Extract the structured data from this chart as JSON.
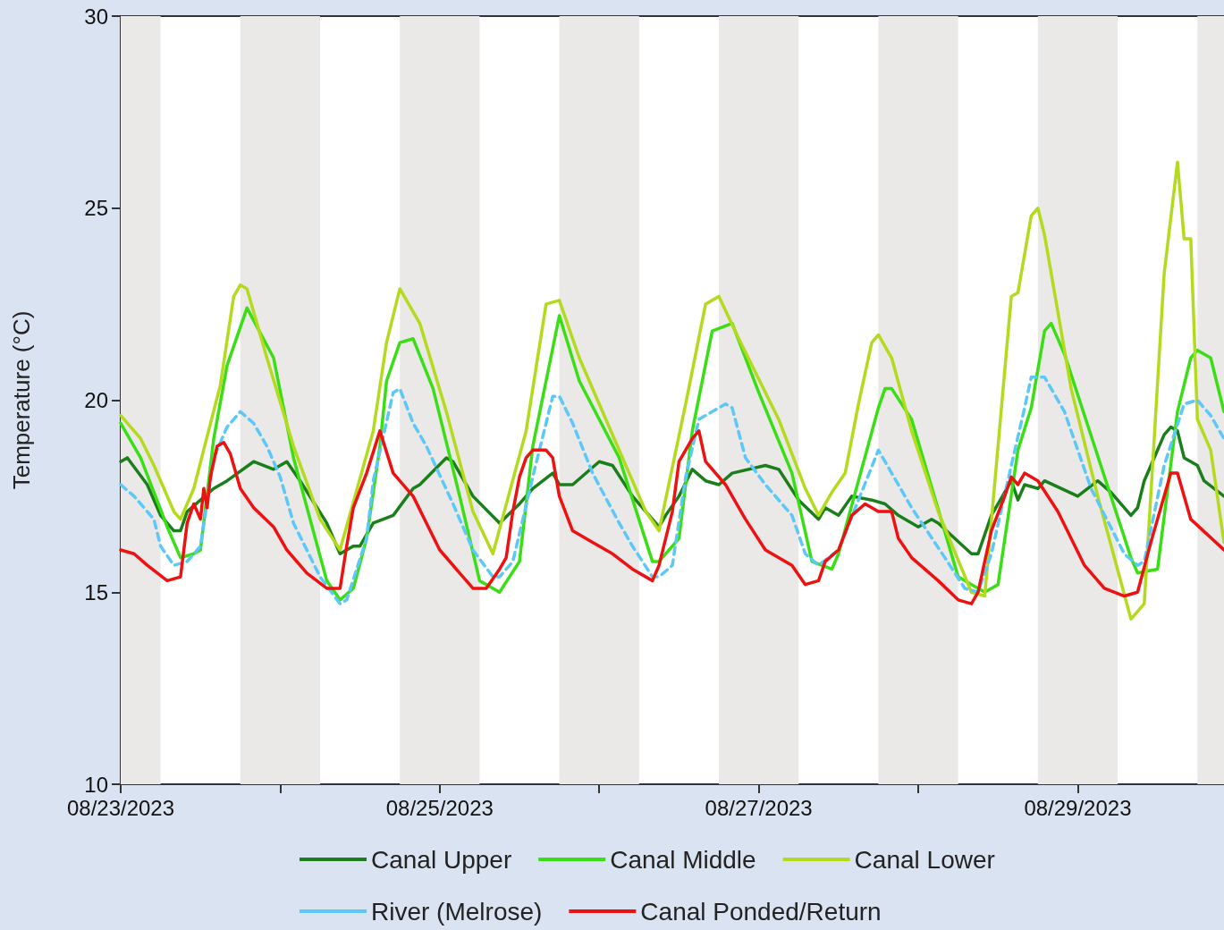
{
  "chart_data": {
    "type": "line",
    "ylabel": "Temperature (°C)",
    "ylim": [
      10,
      30
    ],
    "yticks": [
      10,
      15,
      20,
      25,
      30
    ],
    "xlim": [
      "2023-08-23T00:00",
      "2023-08-29T22:00"
    ],
    "xticks": [
      {
        "value": "2023-08-23",
        "label": "08/23/2023"
      },
      {
        "value": "2023-08-24",
        "label": null
      },
      {
        "value": "2023-08-25",
        "label": "08/25/2023"
      },
      {
        "value": "2023-08-26",
        "label": null
      },
      {
        "value": "2023-08-27",
        "label": "08/27/2023"
      },
      {
        "value": "2023-08-28",
        "label": null
      },
      {
        "value": "2023-08-29",
        "label": "08/29/2023"
      }
    ],
    "grid": false,
    "legend": "bottom",
    "marker": "none",
    "bands": [
      {
        "axis": "x",
        "from": "2023-08-23T00:00",
        "to": "2023-08-23T06:00",
        "color": "#ebe8e8"
      },
      {
        "axis": "x",
        "from": "2023-08-23T18:00",
        "to": "2023-08-24T06:00",
        "color": "#ebe8e8"
      },
      {
        "axis": "x",
        "from": "2023-08-24T18:00",
        "to": "2023-08-25T06:00",
        "color": "#ebe8e8"
      },
      {
        "axis": "x",
        "from": "2023-08-25T18:00",
        "to": "2023-08-26T06:00",
        "color": "#ebe8e8"
      },
      {
        "axis": "x",
        "from": "2023-08-26T18:00",
        "to": "2023-08-27T06:00",
        "color": "#ebe8e8"
      },
      {
        "axis": "x",
        "from": "2023-08-27T18:00",
        "to": "2023-08-28T06:00",
        "color": "#ebe8e8"
      },
      {
        "axis": "x",
        "from": "2023-08-28T18:00",
        "to": "2023-08-29T06:00",
        "color": "#ebe8e8"
      },
      {
        "axis": "x",
        "from": "2023-08-29T18:00",
        "to": "2023-08-29T22:00",
        "color": "#ebe8e8"
      }
    ],
    "series": [
      {
        "name": "Canal Upper",
        "color": "#1a7f1a",
        "line_style": "solid",
        "x": [
          "2023-08-23T00:00",
          "2023-08-23T01:00",
          "2023-08-23T04:00",
          "2023-08-23T06:00",
          "2023-08-23T08:00",
          "2023-08-23T09:00",
          "2023-08-23T10:00",
          "2023-08-23T14:00",
          "2023-08-23T16:00",
          "2023-08-23T20:00",
          "2023-08-23T23:00",
          "2023-08-24T01:00",
          "2023-08-24T03:00",
          "2023-08-24T07:00",
          "2023-08-24T09:00",
          "2023-08-24T11:00",
          "2023-08-24T12:00",
          "2023-08-24T14:00",
          "2023-08-24T17:00",
          "2023-08-24T20:00",
          "2023-08-24T21:00",
          "2023-08-25T01:00",
          "2023-08-25T02:00",
          "2023-08-25T05:00",
          "2023-08-25T09:00",
          "2023-08-25T12:00",
          "2023-08-25T14:00",
          "2023-08-25T17:00",
          "2023-08-25T18:00",
          "2023-08-25T20:00",
          "2023-08-26T00:00",
          "2023-08-26T02:00",
          "2023-08-26T05:00",
          "2023-08-26T09:00",
          "2023-08-26T10:00",
          "2023-08-26T12:00",
          "2023-08-26T14:00",
          "2023-08-26T16:00",
          "2023-08-26T18:00",
          "2023-08-26T20:00",
          "2023-08-27T01:00",
          "2023-08-27T03:00",
          "2023-08-27T06:00",
          "2023-08-27T09:00",
          "2023-08-27T10:00",
          "2023-08-27T12:00",
          "2023-08-27T14:00",
          "2023-08-27T17:00",
          "2023-08-27T19:00",
          "2023-08-27T21:00",
          "2023-08-28T00:00",
          "2023-08-28T02:00",
          "2023-08-28T03:00",
          "2023-08-28T08:00",
          "2023-08-28T09:00",
          "2023-08-28T11:00",
          "2023-08-28T14:00",
          "2023-08-28T15:00",
          "2023-08-28T16:00",
          "2023-08-28T18:00",
          "2023-08-28T19:00",
          "2023-08-29T00:00",
          "2023-08-29T03:00",
          "2023-08-29T05:00",
          "2023-08-29T08:00",
          "2023-08-29T09:00",
          "2023-08-29T10:00",
          "2023-08-29T13:00",
          "2023-08-29T14:00",
          "2023-08-29T15:00",
          "2023-08-29T16:00",
          "2023-08-29T18:00",
          "2023-08-29T19:00",
          "2023-08-29T22:00"
        ],
        "values": [
          18.4,
          18.5,
          17.8,
          17.0,
          16.6,
          16.6,
          17.1,
          17.7,
          17.9,
          18.4,
          18.2,
          18.4,
          17.9,
          16.8,
          16.0,
          16.2,
          16.2,
          16.8,
          17.0,
          17.7,
          17.8,
          18.5,
          18.4,
          17.5,
          16.8,
          17.3,
          17.7,
          18.1,
          17.8,
          17.8,
          18.4,
          18.3,
          17.5,
          16.7,
          17.0,
          17.5,
          18.2,
          17.9,
          17.8,
          18.1,
          18.3,
          18.2,
          17.4,
          16.9,
          17.2,
          17.0,
          17.5,
          17.4,
          17.3,
          17.0,
          16.7,
          16.9,
          16.8,
          16.0,
          16.0,
          17.0,
          17.9,
          17.4,
          17.8,
          17.7,
          17.9,
          17.5,
          17.9,
          17.6,
          17.0,
          17.2,
          17.9,
          19.1,
          19.3,
          19.2,
          18.5,
          18.3,
          17.9,
          17.5
        ]
      },
      {
        "name": "Canal Middle",
        "color": "#3ade14",
        "line_style": "solid",
        "x": [
          "2023-08-23T00:00",
          "2023-08-23T03:00",
          "2023-08-23T07:00",
          "2023-08-23T09:00",
          "2023-08-23T11:00",
          "2023-08-23T12:00",
          "2023-08-23T14:00",
          "2023-08-23T16:00",
          "2023-08-23T19:00",
          "2023-08-23T23:00",
          "2023-08-24T02:00",
          "2023-08-24T07:00",
          "2023-08-24T09:00",
          "2023-08-24T11:00",
          "2023-08-24T13:00",
          "2023-08-24T15:00",
          "2023-08-24T16:00",
          "2023-08-24T18:00",
          "2023-08-24T20:00",
          "2023-08-24T23:00",
          "2023-08-25T03:00",
          "2023-08-25T06:00",
          "2023-08-25T09:00",
          "2023-08-25T12:00",
          "2023-08-25T14:00",
          "2023-08-25T18:00",
          "2023-08-25T21:00",
          "2023-08-26T03:00",
          "2023-08-26T08:00",
          "2023-08-26T09:00",
          "2023-08-26T12:00",
          "2023-08-26T14:00",
          "2023-08-26T17:00",
          "2023-08-26T20:00",
          "2023-08-27T00:00",
          "2023-08-27T05:00",
          "2023-08-27T08:00",
          "2023-08-27T11:00",
          "2023-08-27T12:00",
          "2023-08-27T18:00",
          "2023-08-27T19:00",
          "2023-08-27T20:00",
          "2023-08-27T23:00",
          "2023-08-28T06:00",
          "2023-08-28T10:00",
          "2023-08-28T12:00",
          "2023-08-28T15:00",
          "2023-08-28T17:00",
          "2023-08-28T19:00",
          "2023-08-28T20:00",
          "2023-08-28T22:00",
          "2023-08-29T08:00",
          "2023-08-29T09:00",
          "2023-08-29T12:00",
          "2023-08-29T15:00",
          "2023-08-29T17:00",
          "2023-08-29T18:00",
          "2023-08-29T20:00",
          "2023-08-29T22:00"
        ],
        "values": [
          19.4,
          18.5,
          16.7,
          15.9,
          16.0,
          16.1,
          19.0,
          20.9,
          22.4,
          21.1,
          18.5,
          15.3,
          14.8,
          15.1,
          16.4,
          18.8,
          20.5,
          21.5,
          21.6,
          20.3,
          17.5,
          15.3,
          15.0,
          15.8,
          18.8,
          22.2,
          20.5,
          18.5,
          15.8,
          15.8,
          16.4,
          19.2,
          21.8,
          22.0,
          20.2,
          18.1,
          15.8,
          15.6,
          16.0,
          19.8,
          20.3,
          20.3,
          19.5,
          15.4,
          15.0,
          15.2,
          18.7,
          19.8,
          21.8,
          22.0,
          21.2,
          15.9,
          15.5,
          15.6,
          19.7,
          21.1,
          21.3,
          21.1,
          19.7
        ]
      },
      {
        "name": "Canal Lower",
        "color": "#b4da1e",
        "line_style": "solid",
        "x": [
          "2023-08-23T00:00",
          "2023-08-23T03:00",
          "2023-08-23T05:00",
          "2023-08-23T08:00",
          "2023-08-23T09:00",
          "2023-08-23T11:00",
          "2023-08-23T15:00",
          "2023-08-23T17:00",
          "2023-08-23T18:00",
          "2023-08-23T19:00",
          "2023-08-23T22:00",
          "2023-08-24T02:00",
          "2023-08-24T06:00",
          "2023-08-24T09:00",
          "2023-08-24T14:00",
          "2023-08-24T16:00",
          "2023-08-24T18:00",
          "2023-08-24T21:00",
          "2023-08-25T01:00",
          "2023-08-25T05:00",
          "2023-08-25T08:00",
          "2023-08-25T13:00",
          "2023-08-25T16:00",
          "2023-08-25T18:00",
          "2023-08-25T21:00",
          "2023-08-26T01:00",
          "2023-08-26T07:00",
          "2023-08-26T09:00",
          "2023-08-26T13:00",
          "2023-08-26T16:00",
          "2023-08-26T18:00",
          "2023-08-26T21:00",
          "2023-08-27T03:00",
          "2023-08-27T07:00",
          "2023-08-27T09:00",
          "2023-08-27T11:00",
          "2023-08-27T13:00",
          "2023-08-27T15:00",
          "2023-08-27T17:00",
          "2023-08-27T18:00",
          "2023-08-27T20:00",
          "2023-08-27T23:00",
          "2023-08-28T03:00",
          "2023-08-28T08:00",
          "2023-08-28T10:00",
          "2023-08-28T14:00",
          "2023-08-28T15:00",
          "2023-08-28T17:00",
          "2023-08-28T18:00",
          "2023-08-28T19:00",
          "2023-08-28T23:00",
          "2023-08-29T03:00",
          "2023-08-29T08:00",
          "2023-08-29T10:00",
          "2023-08-29T13:00",
          "2023-08-29T15:00",
          "2023-08-29T16:00",
          "2023-08-29T17:00",
          "2023-08-29T18:00",
          "2023-08-29T20:00",
          "2023-08-29T22:00"
        ],
        "values": [
          19.6,
          19.0,
          18.3,
          17.1,
          16.9,
          17.7,
          20.4,
          22.7,
          23.0,
          22.9,
          21.1,
          18.8,
          16.9,
          16.1,
          19.2,
          21.5,
          22.9,
          22.0,
          19.7,
          17.1,
          16.0,
          19.2,
          22.5,
          22.6,
          21.1,
          19.5,
          17.1,
          16.6,
          19.9,
          22.5,
          22.7,
          21.6,
          19.5,
          17.7,
          17.0,
          17.6,
          18.1,
          19.9,
          21.5,
          21.7,
          21.1,
          19.2,
          17.1,
          15.0,
          14.9,
          22.7,
          22.8,
          24.8,
          25.0,
          24.3,
          20.3,
          17.5,
          14.3,
          14.7,
          23.3,
          26.2,
          24.2,
          24.2,
          19.5,
          18.7,
          16.3
        ]
      },
      {
        "name": "River (Melrose)",
        "color": "#5cc8f7",
        "line_style": "dashed",
        "x": [
          "2023-08-23T00:00",
          "2023-08-23T02:00",
          "2023-08-23T05:00",
          "2023-08-23T06:00",
          "2023-08-23T08:00",
          "2023-08-23T10:00",
          "2023-08-23T12:00",
          "2023-08-23T14:00",
          "2023-08-23T16:00",
          "2023-08-23T18:00",
          "2023-08-23T20:00",
          "2023-08-23T22:00",
          "2023-08-24T00:00",
          "2023-08-24T02:00",
          "2023-08-24T06:00",
          "2023-08-24T09:00",
          "2023-08-24T10:00",
          "2023-08-24T13:00",
          "2023-08-24T14:00",
          "2023-08-24T17:00",
          "2023-08-24T18:00",
          "2023-08-24T20:00",
          "2023-08-24T22:00",
          "2023-08-25T02:00",
          "2023-08-25T05:00",
          "2023-08-25T08:00",
          "2023-08-25T09:00",
          "2023-08-25T11:00",
          "2023-08-25T14:00",
          "2023-08-25T17:00",
          "2023-08-25T18:00",
          "2023-08-25T20:00",
          "2023-08-25T23:00",
          "2023-08-26T03:00",
          "2023-08-26T05:00",
          "2023-08-26T08:00",
          "2023-08-26T09:00",
          "2023-08-26T11:00",
          "2023-08-26T13:00",
          "2023-08-26T15:00",
          "2023-08-26T19:00",
          "2023-08-26T20:00",
          "2023-08-26T22:00",
          "2023-08-27T01:00",
          "2023-08-27T05:00",
          "2023-08-27T07:00",
          "2023-08-27T09:00",
          "2023-08-27T12:00",
          "2023-08-27T18:00",
          "2023-08-27T20:00",
          "2023-08-27T23:00",
          "2023-08-28T04:00",
          "2023-08-28T07:00",
          "2023-08-28T09:00",
          "2023-08-28T11:00",
          "2023-08-28T14:00",
          "2023-08-28T16:00",
          "2023-08-28T17:00",
          "2023-08-28T19:00",
          "2023-08-28T22:00",
          "2023-08-29T02:00",
          "2023-08-29T07:00",
          "2023-08-29T09:00",
          "2023-08-29T10:00",
          "2023-08-29T13:00",
          "2023-08-29T16:00",
          "2023-08-29T18:00",
          "2023-08-29T20:00",
          "2023-08-29T22:00"
        ],
        "values": [
          17.8,
          17.5,
          16.9,
          16.2,
          15.7,
          15.8,
          16.2,
          18.5,
          19.3,
          19.7,
          19.4,
          18.8,
          18.0,
          16.8,
          15.4,
          14.7,
          14.8,
          16.4,
          17.9,
          20.2,
          20.3,
          19.4,
          18.8,
          17.3,
          16.1,
          15.4,
          15.4,
          15.8,
          18.0,
          20.1,
          20.1,
          19.4,
          18.1,
          16.8,
          16.2,
          15.4,
          15.4,
          15.7,
          18.0,
          19.5,
          19.9,
          19.8,
          18.5,
          17.8,
          17.0,
          16.0,
          15.7,
          16.1,
          18.7,
          18.1,
          17.2,
          15.9,
          15.1,
          15.0,
          16.0,
          18.3,
          19.8,
          20.6,
          20.6,
          19.7,
          17.7,
          16.0,
          15.7,
          15.8,
          18.3,
          19.9,
          20.0,
          19.6,
          19.0
        ]
      },
      {
        "name": "Canal Ponded/Return",
        "color": "#ee1111",
        "line_style": "solid",
        "x": [
          "2023-08-23T00:00",
          "2023-08-23T02:00",
          "2023-08-23T04:00",
          "2023-08-23T07:00",
          "2023-08-23T09:00",
          "2023-08-23T10:00",
          "2023-08-23T11:00",
          "2023-08-23T12:00",
          "2023-08-23T12:30",
          "2023-08-23T13:00",
          "2023-08-23T13:30",
          "2023-08-23T14:30",
          "2023-08-23T15:30",
          "2023-08-23T16:30",
          "2023-08-23T18:00",
          "2023-08-23T20:00",
          "2023-08-23T23:00",
          "2023-08-24T01:00",
          "2023-08-24T04:00",
          "2023-08-24T07:00",
          "2023-08-24T09:00",
          "2023-08-24T10:00",
          "2023-08-24T11:00",
          "2023-08-24T13:00",
          "2023-08-24T15:00",
          "2023-08-24T17:00",
          "2023-08-24T19:00",
          "2023-08-24T20:00",
          "2023-08-24T22:00",
          "2023-08-25T00:00",
          "2023-08-25T03:00",
          "2023-08-25T05:00",
          "2023-08-25T07:00",
          "2023-08-25T09:00",
          "2023-08-25T10:00",
          "2023-08-25T11:00",
          "2023-08-25T12:00",
          "2023-08-25T13:00",
          "2023-08-25T14:00",
          "2023-08-25T16:00",
          "2023-08-25T17:00",
          "2023-08-25T18:00",
          "2023-08-25T20:00",
          "2023-08-25T23:00",
          "2023-08-26T02:00",
          "2023-08-26T05:00",
          "2023-08-26T08:00",
          "2023-08-26T09:00",
          "2023-08-26T11:00",
          "2023-08-26T12:00",
          "2023-08-26T14:00",
          "2023-08-26T15:00",
          "2023-08-26T16:00",
          "2023-08-26T19:00",
          "2023-08-26T22:00",
          "2023-08-27T01:00",
          "2023-08-27T05:00",
          "2023-08-27T07:00",
          "2023-08-27T09:00",
          "2023-08-27T10:00",
          "2023-08-27T12:00",
          "2023-08-27T14:00",
          "2023-08-27T16:00",
          "2023-08-27T18:00",
          "2023-08-27T20:00",
          "2023-08-27T21:00",
          "2023-08-27T23:00",
          "2023-08-28T03:00",
          "2023-08-28T06:00",
          "2023-08-28T08:00",
          "2023-08-28T09:00",
          "2023-08-28T11:00",
          "2023-08-28T13:00",
          "2023-08-28T14:00",
          "2023-08-28T15:00",
          "2023-08-28T16:00",
          "2023-08-28T18:00",
          "2023-08-28T21:00",
          "2023-08-29T01:00",
          "2023-08-29T04:00",
          "2023-08-29T07:00",
          "2023-08-29T09:00",
          "2023-08-29T11:00",
          "2023-08-29T14:00",
          "2023-08-29T15:00",
          "2023-08-29T17:00",
          "2023-08-29T22:00"
        ],
        "values": [
          16.1,
          16.0,
          15.7,
          15.3,
          15.4,
          16.8,
          17.3,
          16.9,
          17.7,
          17.2,
          18.0,
          18.8,
          18.9,
          18.6,
          17.7,
          17.2,
          16.7,
          16.1,
          15.5,
          15.1,
          15.1,
          16.2,
          17.2,
          18.1,
          19.2,
          18.1,
          17.7,
          17.5,
          16.8,
          16.1,
          15.5,
          15.1,
          15.1,
          15.6,
          15.9,
          17.1,
          18.0,
          18.5,
          18.7,
          18.7,
          18.5,
          17.5,
          16.6,
          16.3,
          16.0,
          15.6,
          15.3,
          15.7,
          17.1,
          18.4,
          19.0,
          19.2,
          18.4,
          17.8,
          16.9,
          16.1,
          15.7,
          15.2,
          15.3,
          15.8,
          16.1,
          17.0,
          17.3,
          17.1,
          17.1,
          16.4,
          15.9,
          15.3,
          14.8,
          14.7,
          15.0,
          16.6,
          17.5,
          18.0,
          17.8,
          18.1,
          17.9,
          17.1,
          15.7,
          15.1,
          14.9,
          15.0,
          16.3,
          18.1,
          18.1,
          16.9,
          16.1
        ]
      }
    ]
  }
}
